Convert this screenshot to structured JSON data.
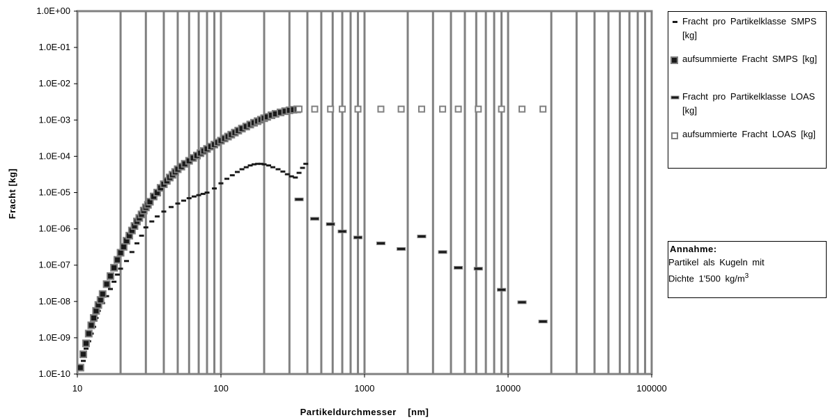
{
  "chart_data": {
    "type": "scatter",
    "x_scale": "log",
    "y_scale": "log",
    "xlim": [
      10,
      100000
    ],
    "ylim": [
      1e-10,
      1
    ],
    "grid": "vertical",
    "xlabel": "Partikeldurchmesser    [nm]",
    "ylabel": "Fracht [kg]",
    "x_ticks": [
      "10",
      "100",
      "1000",
      "10000",
      "100000"
    ],
    "y_ticks": [
      "1.0E-10",
      "1.0E-09",
      "1.0E-08",
      "1.0E-07",
      "1.0E-06",
      "1.0E-05",
      "1.0E-04",
      "1.0E-03",
      "1.0E-02",
      "1.0E-01",
      "1.0E+00"
    ],
    "legend_position": "right",
    "series": [
      {
        "name": "Fracht pro Partikelklasse SMPS [kg]",
        "marker": "dash",
        "x": [
          11,
          11.5,
          12,
          12.5,
          13,
          13.5,
          14,
          15,
          16,
          17,
          18,
          19,
          20,
          22,
          24,
          26,
          28,
          30,
          33,
          36,
          40,
          45,
          50,
          55,
          60,
          65,
          70,
          75,
          80,
          90,
          100,
          110,
          120,
          130,
          140,
          150,
          160,
          170,
          180,
          190,
          200,
          215,
          230,
          250,
          270,
          290,
          310,
          330,
          350,
          370,
          390
        ],
        "y": [
          2.3e-10,
          5e-10,
          8e-10,
          1.3e-09,
          2e-09,
          3.5e-09,
          5.5e-09,
          9e-09,
          1.4e-08,
          2.2e-08,
          3.5e-08,
          5.5e-08,
          8e-08,
          1.3e-07,
          2.3e-07,
          4e-07,
          6.5e-07,
          1.1e-06,
          1.6e-06,
          2.2e-06,
          3e-06,
          4e-06,
          5e-06,
          6e-06,
          7e-06,
          7.8e-06,
          8.5e-06,
          9.2e-06,
          1e-05,
          1.3e-05,
          1.8e-05,
          2.4e-05,
          3e-05,
          3.7e-05,
          4.4e-05,
          5e-05,
          5.6e-05,
          6e-05,
          6.2e-05,
          6.2e-05,
          6e-05,
          5.6e-05,
          5e-05,
          4.4e-05,
          3.8e-05,
          3.2e-05,
          2.8e-05,
          2.6e-05,
          3.5e-05,
          4.8e-05,
          6.2e-05
        ]
      },
      {
        "name": "aufsummierte Fracht SMPS [kg]",
        "marker": "filled-square",
        "x": [
          10.5,
          11,
          11.5,
          12,
          12.5,
          13,
          13.5,
          14,
          14.5,
          15,
          16,
          17,
          18,
          19,
          20,
          21,
          22,
          23,
          24,
          25,
          26,
          27,
          28,
          29,
          30,
          31,
          32,
          34,
          36,
          38,
          40,
          42,
          44,
          46,
          48,
          50,
          53,
          56,
          60,
          64,
          68,
          72,
          76,
          80,
          85,
          90,
          95,
          100,
          106,
          112,
          118,
          125,
          132,
          140,
          150,
          160,
          170,
          180,
          190,
          200,
          210,
          225,
          240,
          260,
          280,
          300,
          320,
          340
        ],
        "y": [
          1.5e-10,
          3.5e-10,
          7e-10,
          1.3e-09,
          2.2e-09,
          3.5e-09,
          5.5e-09,
          8e-09,
          1.1e-08,
          1.6e-08,
          3e-08,
          5e-08,
          8.5e-08,
          1.4e-07,
          2.2e-07,
          3.2e-07,
          4.7e-07,
          6.5e-07,
          9e-07,
          1.2e-06,
          1.6e-06,
          2e-06,
          2.5e-06,
          3.2e-06,
          3.9e-06,
          4.6e-06,
          5.6e-06,
          7.8e-06,
          1e-05,
          1.35e-05,
          1.7e-05,
          2.1e-05,
          2.6e-05,
          3.1e-05,
          3.7e-05,
          4.4e-05,
          5.2e-05,
          6.2e-05,
          7.5e-05,
          9e-05,
          0.000105,
          0.000122,
          0.00014,
          0.00016,
          0.000185,
          0.00021,
          0.00024,
          0.00027,
          0.00031,
          0.00035,
          0.000395,
          0.00045,
          0.00051,
          0.00058,
          0.00066,
          0.00075,
          0.00084,
          0.00093,
          0.00102,
          0.00112,
          0.00122,
          0.00135,
          0.00148,
          0.00162,
          0.00175,
          0.00185,
          0.00192,
          0.00197
        ]
      },
      {
        "name": "Fracht pro Partikelklasse LOAS [kg]",
        "marker": "wide-dash",
        "x": [
          350,
          450,
          580,
          700,
          900,
          1300,
          1800,
          2500,
          3500,
          4500,
          6200,
          9000,
          12500,
          17500
        ],
        "y": [
          6.5e-06,
          1.9e-06,
          1.35e-06,
          8.5e-07,
          5.8e-07,
          4e-07,
          2.8e-07,
          6.2e-07,
          2.3e-07,
          8.5e-08,
          8e-08,
          2.1e-08,
          9.5e-09,
          2.8e-09
        ]
      },
      {
        "name": "aufsummierte Fracht LOAS [kg]",
        "marker": "hollow-square",
        "x": [
          350,
          450,
          580,
          700,
          900,
          1300,
          1800,
          2500,
          3500,
          4500,
          6200,
          9000,
          12500,
          17500
        ],
        "y": [
          0.002,
          0.002,
          0.002,
          0.002,
          0.002,
          0.002,
          0.002,
          0.002,
          0.002,
          0.002,
          0.002,
          0.002,
          0.002,
          0.002
        ]
      }
    ],
    "annotation": {
      "title": "Annahme:",
      "line1": "Partikel als Kugeln mit",
      "line2_prefix": "Dichte 1'500 kg/m",
      "line2_sup": "3"
    }
  },
  "colors": {
    "grid": "#808080",
    "frame": "#808080",
    "marker_dark": "#1a1a1a",
    "marker_mid": "#808080",
    "marker_fill": "#ffffff"
  }
}
